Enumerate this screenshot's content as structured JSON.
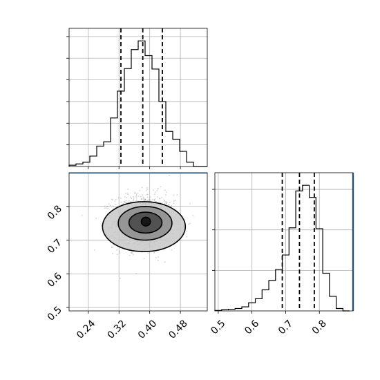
{
  "colors": {
    "truth": "#4682b4",
    "line": "#000000",
    "grid": "#b0b0b0"
  },
  "chart_data": [
    {
      "type": "histogram",
      "panel": "x-marginal",
      "xlim": [
        0.19,
        0.55
      ],
      "bin_edges": [
        0.19,
        0.208,
        0.226,
        0.244,
        0.262,
        0.28,
        0.298,
        0.316,
        0.334,
        0.352,
        0.37,
        0.388,
        0.406,
        0.424,
        0.442,
        0.46,
        0.478,
        0.496,
        0.514,
        0.532,
        0.55
      ],
      "counts": [
        3,
        6,
        10,
        24,
        47,
        57,
        112,
        174,
        226,
        270,
        290,
        256,
        225,
        150,
        81,
        63,
        35,
        10,
        0,
        0
      ],
      "quantiles": [
        0.325,
        0.382,
        0.433
      ],
      "grid": true,
      "tick_labels_shown": false
    },
    {
      "type": "scatter-density",
      "panel": "joint",
      "xlim": [
        0.19,
        0.55
      ],
      "ylim": [
        0.49,
        0.9
      ],
      "xticks": [
        0.24,
        0.32,
        0.4,
        0.48
      ],
      "xtick_labels": [
        "0.24",
        "0.32",
        "0.40",
        "0.48"
      ],
      "yticks": [
        0.5,
        0.6,
        0.7,
        0.8
      ],
      "ytick_labels": [
        "0.5",
        "0.6",
        "0.7",
        "0.8"
      ],
      "truth_y": 0.9,
      "center": [
        0.385,
        0.755
      ],
      "spread": [
        0.04,
        0.04
      ],
      "contour_levels": [
        {
          "ellipse": [
            0.385,
            0.74,
            0.108,
            0.074
          ],
          "shade": "#c8c8c8"
        },
        {
          "ellipse": [
            0.388,
            0.75,
            0.07,
            0.05
          ],
          "shade": "#8f8f8f"
        },
        {
          "ellipse": [
            0.389,
            0.752,
            0.043,
            0.031
          ],
          "shade": "#4a4a4a"
        },
        {
          "ellipse": [
            0.39,
            0.755,
            0.012,
            0.013
          ],
          "shade": "#111111"
        }
      ],
      "grid": true
    },
    {
      "type": "histogram",
      "panel": "y-marginal",
      "xlim": [
        0.49,
        0.9
      ],
      "bin_edges": [
        0.49,
        0.51,
        0.53,
        0.55,
        0.57,
        0.59,
        0.61,
        0.63,
        0.65,
        0.67,
        0.69,
        0.71,
        0.73,
        0.75,
        0.77,
        0.79,
        0.81,
        0.83,
        0.85,
        0.87,
        0.89
      ],
      "counts": [
        1,
        3,
        4,
        6,
        10,
        20,
        30,
        52,
        75,
        102,
        138,
        205,
        296,
        310,
        280,
        203,
        93,
        36,
        6,
        0
      ],
      "quantiles": [
        0.69,
        0.741,
        0.785
      ],
      "xticks": [
        0.5,
        0.6,
        0.7,
        0.8
      ],
      "xtick_labels": [
        "0.5",
        "0.6",
        "0.7",
        "0.8"
      ],
      "truth_x": 0.9,
      "grid": true
    }
  ]
}
